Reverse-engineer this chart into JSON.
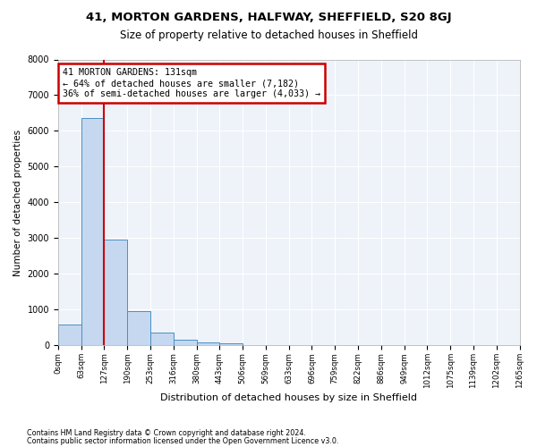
{
  "title1": "41, MORTON GARDENS, HALFWAY, SHEFFIELD, S20 8GJ",
  "title2": "Size of property relative to detached houses in Sheffield",
  "xlabel": "Distribution of detached houses by size in Sheffield",
  "ylabel": "Number of detached properties",
  "footer1": "Contains HM Land Registry data © Crown copyright and database right 2024.",
  "footer2": "Contains public sector information licensed under the Open Government Licence v3.0.",
  "bin_labels": [
    "0sqm",
    "63sqm",
    "127sqm",
    "190sqm",
    "253sqm",
    "316sqm",
    "380sqm",
    "443sqm",
    "506sqm",
    "569sqm",
    "633sqm",
    "696sqm",
    "759sqm",
    "822sqm",
    "886sqm",
    "949sqm",
    "1012sqm",
    "1075sqm",
    "1139sqm",
    "1202sqm",
    "1265sqm"
  ],
  "bar_heights": [
    590,
    6370,
    2950,
    960,
    370,
    160,
    90,
    70,
    0,
    0,
    0,
    0,
    0,
    0,
    0,
    0,
    0,
    0,
    0,
    0
  ],
  "bar_color": "#c5d8f0",
  "bar_edge_color": "#4a90c4",
  "vline_x": 2,
  "vline_color": "#cc0000",
  "annotation_text": "41 MORTON GARDENS: 131sqm\n← 64% of detached houses are smaller (7,182)\n36% of semi-detached houses are larger (4,033) →",
  "annotation_box_color": "#cc0000",
  "ylim": [
    0,
    8000
  ],
  "background_color": "#eef3fa",
  "grid_color": "#ffffff"
}
